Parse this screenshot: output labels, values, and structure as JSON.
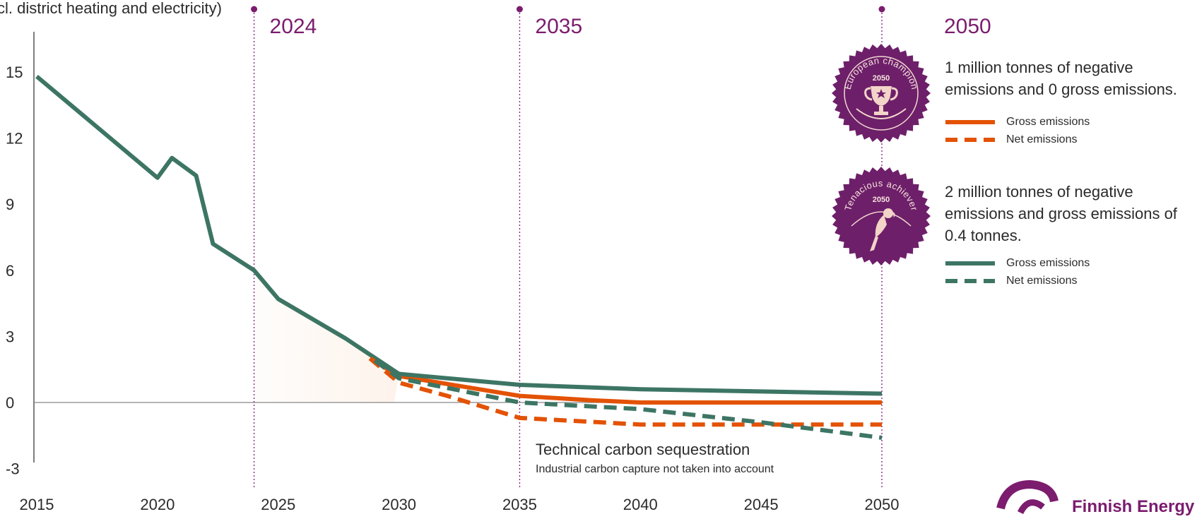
{
  "chart_data": {
    "type": "line",
    "ylabel": "cl. district heating and electricity)",
    "ylim": [
      -3,
      16.5
    ],
    "xlim": [
      2015,
      2050
    ],
    "yticks": [
      "15",
      "12",
      "9",
      "6",
      "3",
      "0",
      "-3"
    ],
    "ytick_values": [
      15,
      12,
      9,
      6,
      3,
      0,
      -3
    ],
    "xticks": [
      "2015",
      "2020",
      "2025",
      "2030",
      "2035",
      "2040",
      "2045",
      "2050"
    ],
    "xtick_values": [
      2015,
      2020,
      2025,
      2030,
      2035,
      2040,
      2045,
      2050
    ],
    "milestones": [
      {
        "year": 2024,
        "label": "2024"
      },
      {
        "year": 2035,
        "label": "2035"
      },
      {
        "year": 2050,
        "label": "2050"
      }
    ],
    "historical": {
      "x": [
        2015,
        2020,
        2020.6,
        2021.6,
        2022.3,
        2024,
        2025,
        2027.8,
        2030
      ],
      "y": [
        14.8,
        10.2,
        11.1,
        10.3,
        7.2,
        6.0,
        4.7,
        2.9,
        1.3
      ]
    },
    "series": [
      {
        "name": "Gross emissions",
        "scenario": "European champion",
        "color": "#e35205",
        "dash": false,
        "x": [
          2028.8,
          2030,
          2035,
          2038,
          2040,
          2045,
          2050
        ],
        "y": [
          2.0,
          1.2,
          0.3,
          0.1,
          0.0,
          0.0,
          0.0
        ]
      },
      {
        "name": "Net emissions",
        "scenario": "European champion",
        "color": "#e35205",
        "dash": true,
        "x": [
          2028.8,
          2030,
          2032,
          2035,
          2040,
          2045,
          2050
        ],
        "y": [
          2.0,
          0.9,
          0.3,
          -0.7,
          -1.0,
          -1.0,
          -1.0
        ]
      },
      {
        "name": "Gross emissions",
        "scenario": "Tenacious achiever",
        "color": "#3d7564",
        "dash": false,
        "x": [
          2029,
          2030,
          2035,
          2040,
          2045,
          2050
        ],
        "y": [
          1.9,
          1.3,
          0.8,
          0.6,
          0.5,
          0.4
        ]
      },
      {
        "name": "Net emissions",
        "scenario": "Tenacious achiever",
        "color": "#3d7564",
        "dash": true,
        "x": [
          2029,
          2030,
          2035,
          2040,
          2045,
          2050
        ],
        "y": [
          1.9,
          1.1,
          0.0,
          -0.3,
          -0.9,
          -1.6
        ]
      }
    ],
    "annotation": {
      "title": "Technical carbon sequestration",
      "subtitle": "Industrial carbon capture not taken into account"
    },
    "colors": {
      "historical": "#3d7564",
      "orange": "#e35205",
      "milestone": "#7b1c6e"
    }
  },
  "scenarios": [
    {
      "badge_title": "European champion",
      "badge_year": "2050",
      "badge_icon": "trophy-icon",
      "description": "1 million tonnes of negative emissions and 0 gross emissions.",
      "legend": [
        "Gross emissions",
        "Net emissions"
      ],
      "color": "#e35205"
    },
    {
      "badge_title": "Tenacious achiever",
      "badge_year": "2050",
      "badge_icon": "parrot-icon",
      "description": "2 million tonnes of negative emissions and gross emissions of 0.4 tonnes.",
      "legend": [
        "Gross emissions",
        "Net emissions"
      ],
      "color": "#3d7564"
    }
  ],
  "logo": {
    "text": "Finnish Energy",
    "icon": "finnish-energy-logo-icon",
    "color": "#7b1c6e"
  }
}
